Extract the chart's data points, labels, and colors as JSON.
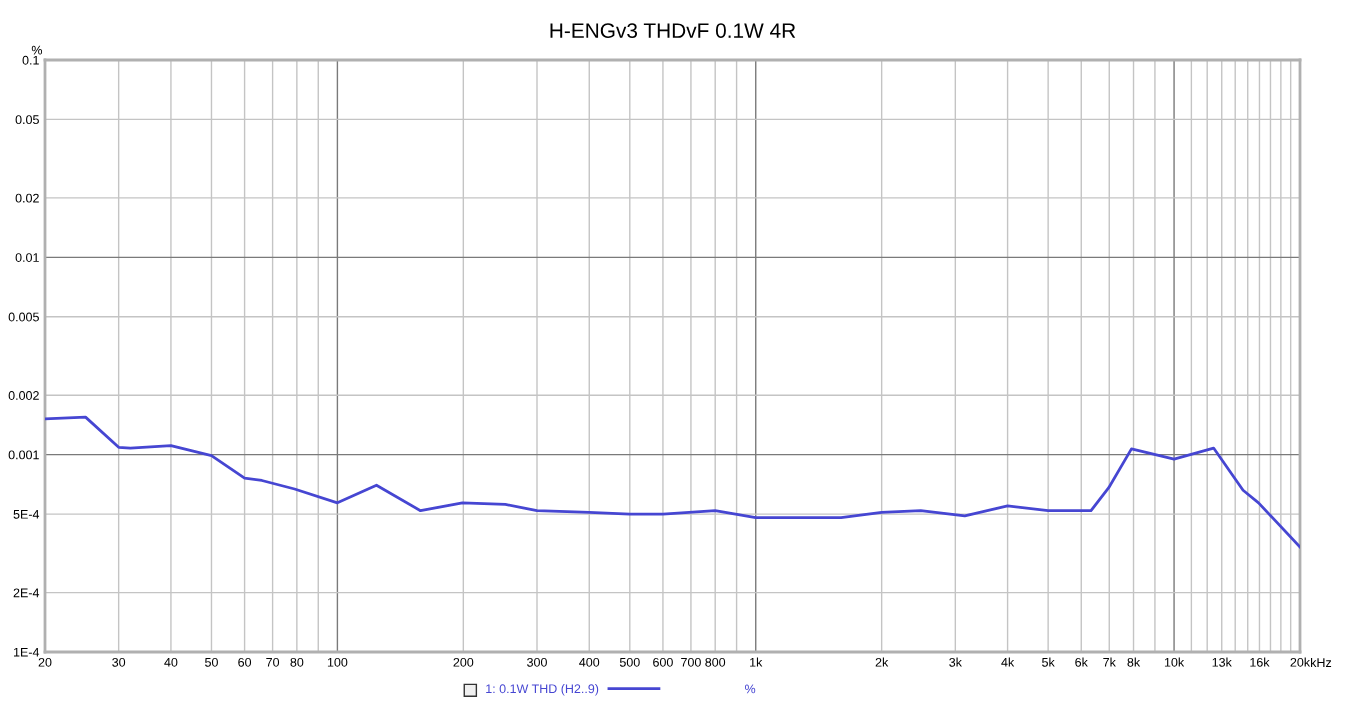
{
  "chart_data": {
    "type": "line",
    "title": "H-ENGv3 THDvF 0.1W 4R",
    "ylabel": "%",
    "log": "xy",
    "grid": true,
    "legend": "bottom",
    "marker": "none",
    "line_style": "solid",
    "xlim": [
      20,
      20000
    ],
    "ylim": [
      0.0001,
      0.1
    ],
    "xticks": [
      20,
      30,
      40,
      50,
      60,
      70,
      80,
      {
        "value": 90,
        "label": null
      },
      100,
      200,
      300,
      400,
      500,
      600,
      700,
      800,
      {
        "value": 900,
        "label": null
      },
      {
        "value": 1000,
        "label": "1k"
      },
      {
        "value": 2000,
        "label": "2k"
      },
      {
        "value": 3000,
        "label": "3k"
      },
      {
        "value": 4000,
        "label": "4k"
      },
      {
        "value": 5000,
        "label": "5k"
      },
      {
        "value": 6000,
        "label": "6k"
      },
      {
        "value": 7000,
        "label": "7k"
      },
      {
        "value": 8000,
        "label": "8k"
      },
      {
        "value": 9000,
        "label": null
      },
      {
        "value": 10000,
        "label": "10k"
      },
      {
        "value": 11000,
        "label": null
      },
      {
        "value": 12000,
        "label": null
      },
      {
        "value": 13000,
        "label": "13k"
      },
      {
        "value": 14000,
        "label": null
      },
      {
        "value": 15000,
        "label": null
      },
      {
        "value": 16000,
        "label": "16k"
      },
      {
        "value": 17000,
        "label": null
      },
      {
        "value": 18000,
        "label": null
      },
      {
        "value": 19000,
        "label": null
      },
      {
        "value": 20000,
        "label": "20k"
      }
    ],
    "xlabel": "kHz",
    "yticks": [
      {
        "value": 0.0001,
        "label": "1E-4"
      },
      {
        "value": 0.0002,
        "label": "2E-4"
      },
      {
        "value": 0.0005,
        "label": "5E-4"
      },
      0.001,
      0.002,
      0.005,
      0.01,
      0.02,
      0.05,
      0.1
    ],
    "annotations": [
      "%"
    ],
    "series": [
      {
        "name": "1: 0.1W THD (H2..9)",
        "color": "#4646d2",
        "x": [
          20,
          25,
          30,
          32,
          40,
          50,
          60,
          66,
          79,
          100,
          124,
          158,
          199,
          252,
          300,
          400,
          500,
          600,
          800,
          1000,
          1600,
          2000,
          2480,
          3160,
          4000,
          5000,
          6330,
          6980,
          7910,
          10000,
          12430,
          14620,
          15920,
          20000
        ],
        "values": [
          0.00152,
          0.00155,
          0.00109,
          0.00108,
          0.00111,
          0.00099,
          0.00076,
          0.00074,
          0.00067,
          0.00057,
          0.0007,
          0.00052,
          0.00057,
          0.00056,
          0.00052,
          0.00051,
          0.0005,
          0.0005,
          0.00052,
          0.00048,
          0.00048,
          0.00051,
          0.00052,
          0.00049,
          0.00055,
          0.00052,
          0.00052,
          0.00068,
          0.00107,
          0.00095,
          0.00108,
          0.00066,
          0.00057,
          0.00034
        ]
      }
    ]
  }
}
